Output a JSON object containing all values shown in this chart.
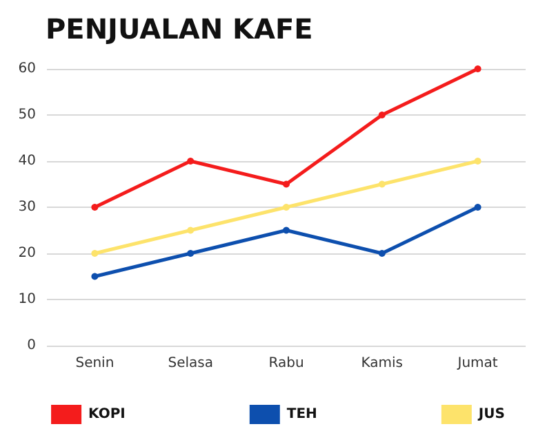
{
  "chart_data": {
    "type": "line",
    "title": "PENJUALAN KAFE",
    "categories": [
      "Senin",
      "Selasa",
      "Rabu",
      "Kamis",
      "Jumat"
    ],
    "series": [
      {
        "name": "KOPI",
        "color": "#f41c1c",
        "values": [
          30,
          40,
          35,
          50,
          60
        ]
      },
      {
        "name": "TEH",
        "color": "#0d4fae",
        "values": [
          15,
          20,
          25,
          20,
          30
        ]
      },
      {
        "name": "JUS",
        "color": "#fde36b",
        "values": [
          20,
          25,
          30,
          35,
          40
        ]
      }
    ],
    "ylim": [
      0,
      60
    ],
    "yticks": [
      0,
      10,
      20,
      30,
      40,
      50,
      60
    ],
    "grid": "y",
    "legend": "bottom",
    "marker": "circle",
    "line_style": "solid"
  }
}
